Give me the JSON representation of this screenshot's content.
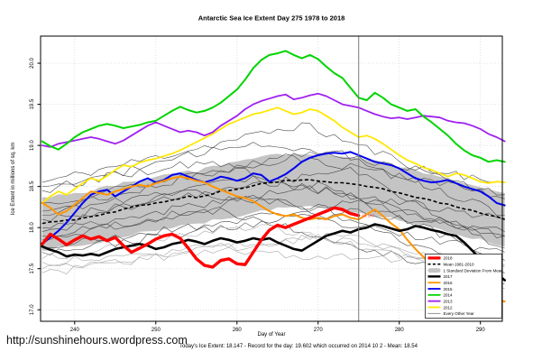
{
  "page": {
    "url": "http://sunshinehours.wordpress.com",
    "footer": "Today's Ice Extent: 18.147  - Record for the day: 19.602 which occurred on 2014 10 2  - Mean: 18.54"
  },
  "chart_data": {
    "type": "line",
    "title": "Antarctic Sea Ice Extent Day 275 1978 to 2018",
    "xlabel": "Day of Year",
    "ylabel": "Ice Extent in millions of sq. km",
    "xlim": [
      235.8,
      292.7
    ],
    "ylim": [
      16.86,
      20.33
    ],
    "xticks": [
      240,
      250,
      260,
      270,
      280,
      290
    ],
    "yticks": [
      17.0,
      17.5,
      18.0,
      18.5,
      19.0,
      19.5,
      20.0
    ],
    "grid": true,
    "grid_color": "#d4d4d4",
    "vline": {
      "day": 275,
      "color": "#7a7a7a"
    },
    "end_label": {
      "text": "18.147",
      "day": 275,
      "value": 18.147,
      "color": "#ff4444"
    },
    "band": {
      "name": "1 Standard Deviation From Mean",
      "color": "#c4c4c4",
      "halfwidth_above": 0.32,
      "halfwidth_below": 0.33
    },
    "mean": {
      "name": "Mean 1981-2010",
      "color": "#000000",
      "width": 1.6,
      "dash": "4,2.6",
      "anchors": [
        [
          236,
          18.05
        ],
        [
          238,
          18.08
        ],
        [
          240,
          18.1
        ],
        [
          242,
          18.13
        ],
        [
          244,
          18.17
        ],
        [
          246,
          18.22
        ],
        [
          248,
          18.27
        ],
        [
          250,
          18.3
        ],
        [
          252,
          18.33
        ],
        [
          254,
          18.38
        ],
        [
          255,
          18.36
        ],
        [
          256,
          18.39
        ],
        [
          258,
          18.44
        ],
        [
          260,
          18.47
        ],
        [
          262,
          18.51
        ],
        [
          264,
          18.55
        ],
        [
          266,
          18.57
        ],
        [
          268,
          18.58
        ],
        [
          270,
          18.57
        ],
        [
          272,
          18.55
        ],
        [
          274,
          18.53
        ],
        [
          276,
          18.5
        ],
        [
          278,
          18.47
        ],
        [
          280,
          18.42
        ],
        [
          282,
          18.37
        ],
        [
          284,
          18.33
        ],
        [
          286,
          18.28
        ],
        [
          288,
          18.23
        ],
        [
          290,
          18.18
        ],
        [
          292,
          18.13
        ],
        [
          293,
          18.1
        ]
      ]
    },
    "series": [
      {
        "name": "2012",
        "color": "#ffe800",
        "width": 1.8,
        "start_day": 236,
        "values": [
          18.3,
          18.38,
          18.44,
          18.4,
          18.47,
          18.54,
          18.6,
          18.57,
          18.63,
          18.7,
          18.76,
          18.74,
          18.79,
          18.82,
          18.84,
          18.87,
          18.9,
          18.94,
          18.99,
          19.04,
          19.09,
          19.14,
          19.2,
          19.26,
          19.3,
          19.34,
          19.38,
          19.4,
          19.43,
          19.46,
          19.42,
          19.38,
          19.4,
          19.44,
          19.42,
          19.36,
          19.3,
          19.22,
          19.16,
          19.1,
          19.12,
          19.08,
          19.02,
          18.95,
          18.88,
          18.82,
          18.78,
          18.73,
          18.7,
          18.66,
          18.62,
          18.66,
          18.64,
          18.6,
          18.56,
          18.54,
          18.56,
          18.55
        ]
      },
      {
        "name": "2013",
        "color": "#a020f0",
        "width": 1.8,
        "start_day": 236,
        "values": [
          19.0,
          18.98,
          19.02,
          19.04,
          19.06,
          19.08,
          19.1,
          19.08,
          19.05,
          19.02,
          19.06,
          19.12,
          19.18,
          19.24,
          19.28,
          19.24,
          19.2,
          19.16,
          19.18,
          19.16,
          19.12,
          19.16,
          19.24,
          19.3,
          19.36,
          19.44,
          19.5,
          19.54,
          19.57,
          19.6,
          19.62,
          19.56,
          19.58,
          19.61,
          19.63,
          19.6,
          19.55,
          19.5,
          19.48,
          19.46,
          19.42,
          19.38,
          19.35,
          19.33,
          19.34,
          19.32,
          19.34,
          19.36,
          19.35,
          19.34,
          19.3,
          19.28,
          19.27,
          19.24,
          19.2,
          19.14,
          19.1,
          19.05
        ]
      },
      {
        "name": "2014",
        "color": "#00d400",
        "width": 2,
        "start_day": 236,
        "values": [
          19.05,
          18.99,
          18.95,
          19.02,
          19.1,
          19.16,
          19.2,
          19.24,
          19.26,
          19.24,
          19.21,
          19.23,
          19.25,
          19.28,
          19.3,
          19.36,
          19.42,
          19.47,
          19.43,
          19.4,
          19.42,
          19.46,
          19.52,
          19.6,
          19.68,
          19.8,
          19.94,
          20.04,
          20.1,
          20.12,
          20.15,
          20.1,
          20.06,
          20.1,
          20.05,
          19.96,
          19.88,
          19.82,
          19.7,
          19.58,
          19.55,
          19.64,
          19.58,
          19.5,
          19.46,
          19.42,
          19.44,
          19.35,
          19.28,
          19.2,
          19.12,
          19.02,
          18.94,
          18.88,
          18.85,
          18.8,
          18.82,
          18.8
        ]
      },
      {
        "name": "2015",
        "color": "#0000ee",
        "width": 2,
        "start_day": 236,
        "values": [
          17.8,
          17.88,
          17.96,
          18.06,
          18.18,
          18.3,
          18.4,
          18.44,
          18.46,
          18.38,
          18.44,
          18.5,
          18.56,
          18.6,
          18.55,
          18.58,
          18.64,
          18.66,
          18.62,
          18.58,
          18.55,
          18.58,
          18.62,
          18.6,
          18.57,
          18.6,
          18.66,
          18.64,
          18.56,
          18.6,
          18.65,
          18.72,
          18.8,
          18.85,
          18.88,
          18.9,
          18.91,
          18.9,
          18.92,
          18.88,
          18.84,
          18.8,
          18.78,
          18.76,
          18.72,
          18.66,
          18.6,
          18.57,
          18.55,
          18.56,
          18.58,
          18.54,
          18.5,
          18.47,
          18.44,
          18.38,
          18.3,
          18.27
        ]
      },
      {
        "name": "2016",
        "color": "#ff9500",
        "width": 2,
        "start_day": 236,
        "values": [
          18.3,
          18.24,
          18.16,
          18.2,
          18.28,
          18.36,
          18.44,
          18.42,
          18.4,
          18.44,
          18.47,
          18.5,
          18.52,
          18.5,
          18.54,
          18.57,
          18.6,
          18.62,
          18.6,
          18.57,
          18.55,
          18.5,
          18.46,
          18.42,
          18.38,
          18.36,
          18.32,
          18.26,
          18.2,
          18.16,
          18.14,
          18.16,
          18.12,
          18.1,
          18.12,
          18.1,
          18.14,
          18.16,
          18.12,
          18.1,
          18.16,
          18.22,
          18.14,
          18.05,
          17.98,
          17.85,
          17.74,
          17.64,
          17.55,
          17.46,
          17.4,
          17.33,
          17.27,
          17.22,
          17.18,
          17.14,
          17.12,
          17.1
        ]
      },
      {
        "name": "2017",
        "color": "#000000",
        "width": 2.6,
        "start_day": 236,
        "values": [
          17.77,
          17.73,
          17.7,
          17.65,
          17.67,
          17.66,
          17.68,
          17.66,
          17.7,
          17.74,
          17.76,
          17.78,
          17.8,
          17.78,
          17.74,
          17.76,
          17.8,
          17.82,
          17.85,
          17.83,
          17.8,
          17.84,
          17.87,
          17.85,
          17.82,
          17.84,
          17.87,
          17.85,
          17.87,
          17.82,
          17.78,
          17.74,
          17.72,
          17.78,
          17.84,
          17.9,
          17.93,
          17.96,
          17.94,
          17.98,
          18.0,
          18.04,
          18.02,
          17.99,
          17.96,
          17.98,
          18.02,
          18.0,
          17.97,
          17.95,
          17.92,
          17.9,
          17.82,
          17.72,
          17.62,
          17.52,
          17.44,
          17.36
        ]
      },
      {
        "name": "2018",
        "color": "#ff0000",
        "width": 3.4,
        "start_day": 236,
        "values": [
          17.8,
          17.92,
          17.86,
          17.79,
          17.85,
          17.9,
          17.86,
          17.89,
          17.84,
          17.88,
          17.78,
          17.7,
          17.75,
          17.8,
          17.86,
          17.9,
          17.92,
          17.87,
          17.75,
          17.62,
          17.54,
          17.52,
          17.6,
          17.62,
          17.56,
          17.55,
          17.7,
          17.85,
          17.97,
          18.03,
          18.0,
          18.04,
          18.08,
          18.12,
          18.16,
          18.2,
          18.24,
          18.22,
          18.17,
          18.147
        ]
      }
    ],
    "background": {
      "name": "Every Other Year",
      "dark_color": "#4a4a4a",
      "light_color": "#a8a8a8",
      "width": 0.6,
      "lines": [
        {
          "start": 18.55,
          "peak": 19.25,
          "peak_day": 268,
          "end": 18.35,
          "seed": 11
        },
        {
          "start": 18.45,
          "peak": 19.05,
          "peak_day": 262,
          "end": 18.55,
          "seed": 12
        },
        {
          "start": 18.3,
          "peak": 18.95,
          "peak_day": 272,
          "end": 18.15,
          "seed": 13
        },
        {
          "start": 18.5,
          "peak": 18.8,
          "peak_day": 256,
          "end": 17.9,
          "seed": 14
        },
        {
          "start": 18.2,
          "peak": 18.88,
          "peak_day": 266,
          "end": 18.4,
          "seed": 15
        },
        {
          "start": 18.1,
          "peak": 18.7,
          "peak_day": 274,
          "end": 17.75,
          "seed": 16
        },
        {
          "start": 18.0,
          "peak": 18.62,
          "peak_day": 260,
          "end": 18.1,
          "seed": 17
        },
        {
          "start": 17.95,
          "peak": 18.52,
          "peak_day": 270,
          "end": 17.6,
          "seed": 18
        },
        {
          "start": 18.15,
          "peak": 18.46,
          "peak_day": 252,
          "end": 17.95,
          "seed": 19
        },
        {
          "start": 17.85,
          "peak": 18.38,
          "peak_day": 264,
          "end": 17.45,
          "seed": 20
        },
        {
          "start": 17.75,
          "peak": 18.32,
          "peak_day": 276,
          "end": 17.9,
          "seed": 21
        },
        {
          "start": 17.9,
          "peak": 18.22,
          "peak_day": 258,
          "end": 17.32,
          "seed": 22
        },
        {
          "start": 17.7,
          "peak": 18.12,
          "peak_day": 268,
          "end": 17.7,
          "seed": 23
        },
        {
          "start": 17.62,
          "peak": 18.02,
          "peak_day": 262,
          "end": 17.52,
          "seed": 24,
          "light": true
        },
        {
          "start": 17.5,
          "peak": 17.88,
          "peak_day": 270,
          "end": 17.36,
          "seed": 25,
          "light": true
        },
        {
          "start": 17.45,
          "peak": 17.72,
          "peak_day": 256,
          "end": 17.55,
          "seed": 26,
          "light": true
        },
        {
          "start": 17.58,
          "peak": 17.92,
          "peak_day": 274,
          "end": 17.26,
          "seed": 27,
          "light": true
        }
      ]
    },
    "legend": {
      "position": "bottom-right",
      "entries": [
        {
          "label": "2018",
          "type": "line",
          "color": "#ff0000",
          "width": 3.2
        },
        {
          "label": "Mean 1981-2010",
          "type": "dashed",
          "color": "#000000",
          "width": 1.6
        },
        {
          "label": "1 Standard Deviation From Mean",
          "type": "band",
          "color": "#c4c4c4"
        },
        {
          "label": "2017",
          "type": "line",
          "color": "#000000",
          "width": 2.4
        },
        {
          "label": "2016",
          "type": "line",
          "color": "#ff9500",
          "width": 1.8
        },
        {
          "label": "2015",
          "type": "line",
          "color": "#0000ee",
          "width": 1.8
        },
        {
          "label": "2014",
          "type": "line",
          "color": "#00d400",
          "width": 1.8
        },
        {
          "label": "2013",
          "type": "line",
          "color": "#a020f0",
          "width": 1.8
        },
        {
          "label": "2012",
          "type": "line",
          "color": "#ffe800",
          "width": 1.8
        },
        {
          "label": "Every Other Year",
          "type": "line",
          "color": "#666666",
          "width": 0.7
        }
      ]
    }
  }
}
